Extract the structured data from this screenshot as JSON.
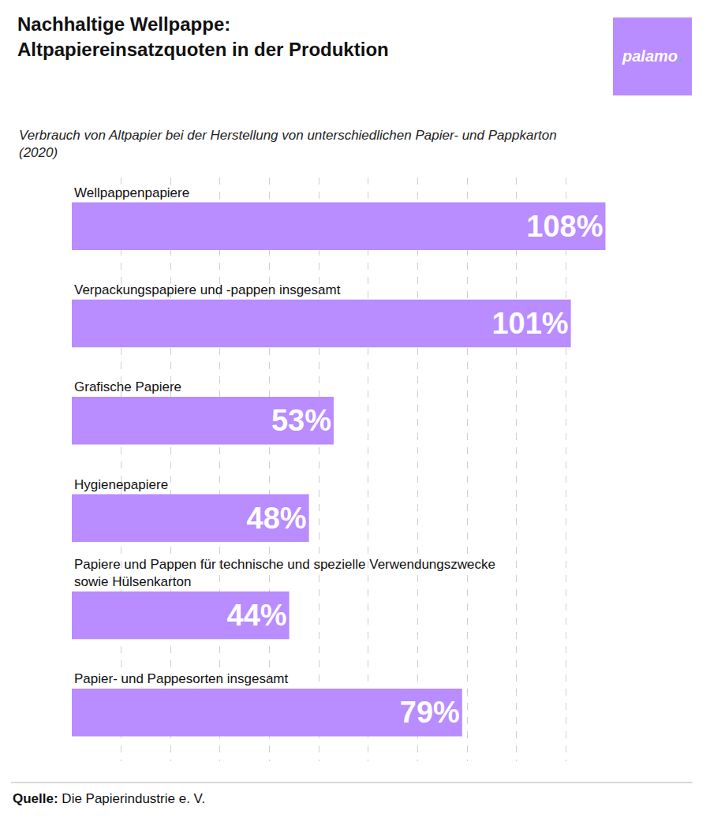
{
  "chart_data": {
    "type": "bar",
    "orientation": "horizontal",
    "title": "Nachhaltige Wellpappe: Altpapiereinsatzquoten in der Produktion",
    "subtitle": "Verbrauch von Altpapier bei der Herstellung von unterschiedlichen Papier- und Pappkarton (2020)",
    "logo": "palamo.",
    "source_label": "Quelle:",
    "source": "Die Papierindustrie e. V.",
    "categories": [
      "Wellpappenpapiere",
      "Verpackungspapiere und -pappen insgesamt",
      "Grafische Papiere",
      "Hygienepapiere",
      "Papiere und Pappen für technische und spezielle Verwendungszwecke sowie Hülsenkarton",
      "Papier- und Pappesorten insgesamt"
    ],
    "values": [
      108,
      101,
      53,
      48,
      44,
      79
    ],
    "value_labels": [
      "108%",
      "101%",
      "53%",
      "48%",
      "44%",
      "79%"
    ],
    "color": "#b98cff",
    "xlim": [
      0,
      110
    ],
    "xticks": [
      0,
      10,
      20,
      30,
      40,
      50,
      60,
      70,
      80,
      90,
      100,
      110
    ],
    "grid": true,
    "data_labels": true,
    "tick_labels": false
  }
}
